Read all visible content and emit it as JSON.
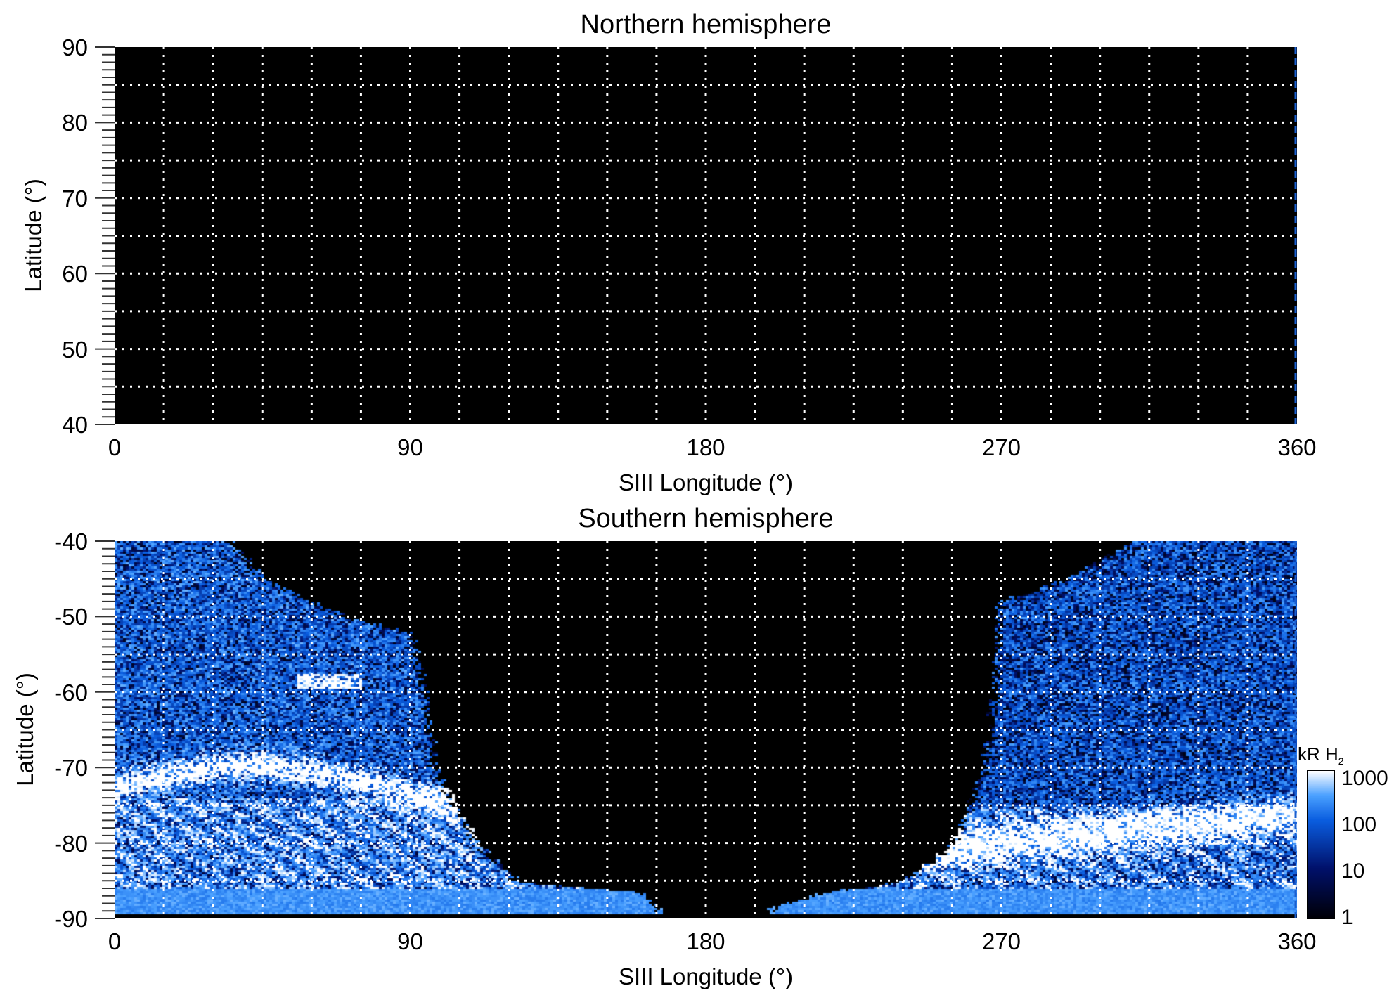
{
  "chart_data": [
    {
      "type": "heatmap",
      "title": "Northern hemisphere",
      "xlabel": "SIII Longitude (°)",
      "ylabel": "Latitude (°)",
      "xlim": [
        0,
        360
      ],
      "ylim": [
        40,
        90
      ],
      "xticks": [
        "0",
        "90",
        "180",
        "270",
        "360"
      ],
      "yticks": [
        "90",
        "80",
        "70",
        "60",
        "50",
        "40"
      ],
      "grid": true,
      "grid_spacing": {
        "longitude": 15,
        "latitude": 5
      }
    },
    {
      "type": "heatmap",
      "title": "Southern hemisphere",
      "xlabel": "SIII Longitude (°)",
      "ylabel": "Latitude (°)",
      "xlim": [
        0,
        360
      ],
      "ylim": [
        -90,
        -40
      ],
      "xticks": [
        "0",
        "90",
        "180",
        "270",
        "360"
      ],
      "yticks": [
        "-40",
        "-50",
        "-60",
        "-70",
        "-80",
        "-90"
      ],
      "grid": true,
      "grid_spacing": {
        "longitude": 15,
        "latitude": 5
      },
      "colorbar": {
        "label": "kR H",
        "label_sub": "2",
        "scale": "log",
        "range": [
          1,
          1000
        ],
        "ticks": [
          "1000",
          "100",
          "10",
          "1"
        ],
        "colors": [
          "#000008",
          "#00106a",
          "#0a5ee0",
          "#4aa0ff",
          "#ffffff"
        ]
      }
    }
  ]
}
